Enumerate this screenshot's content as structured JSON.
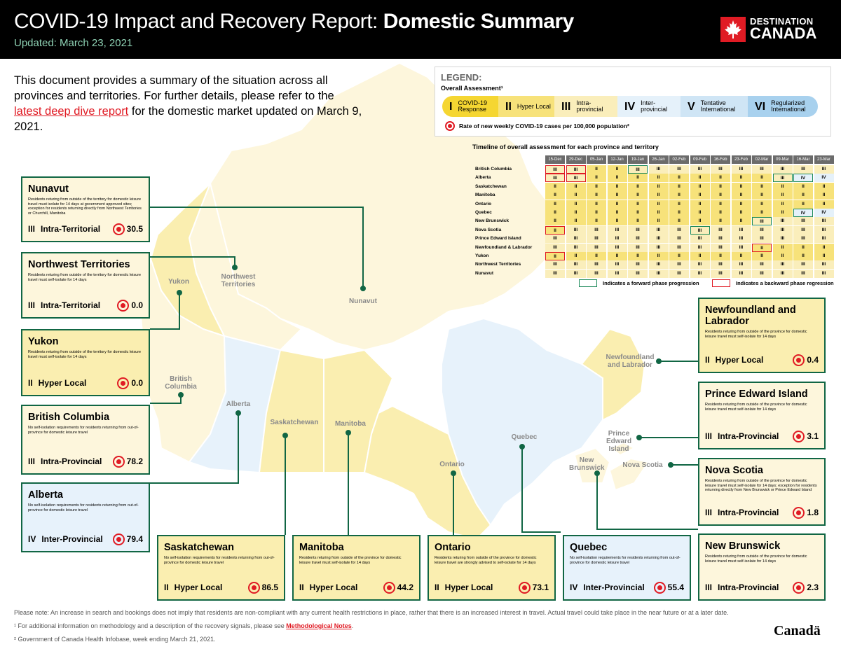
{
  "header": {
    "title_light": "COVID-19 Impact and Recovery Report:",
    "title_bold": "Domestic Summary",
    "updated": "Updated: March 23, 2021",
    "logo_line1": "DESTINATION",
    "logo_line2": "CANADA"
  },
  "intro": {
    "before": "This document provides a summary of the situation across all provinces and territories. For further details, please refer to the ",
    "link": "latest deep dive report",
    "after": " for the domestic market updated on March 9, 2021."
  },
  "map_labels": {
    "yukon": "Yukon",
    "nwt": "Northwest Territories",
    "nunavut": "Nunavut",
    "bc": "British Columbia",
    "alberta": "Alberta",
    "saskatchewan": "Saskatchewan",
    "manitoba": "Manitoba",
    "ontario": "Ontario",
    "quebec": "Quebec",
    "nl": "Newfoundland and Labrador",
    "pei": "Prince Edward Island",
    "nb": "New Brunswick",
    "ns": "Nova Scotia"
  },
  "legend": {
    "title": "LEGEND:",
    "subtitle": "Overall Assessment¹",
    "phases": [
      {
        "numeral": "I",
        "label": "COVID-19 Response",
        "color": "#f5d632"
      },
      {
        "numeral": "II",
        "label": "Hyper Local",
        "color": "#f7e27a"
      },
      {
        "numeral": "III",
        "label": "Intra-provincial",
        "color": "#faeebb"
      },
      {
        "numeral": "IV",
        "label": "Inter-provincial",
        "color": "#e5f1fa"
      },
      {
        "numeral": "V",
        "label": "Tentative International",
        "color": "#cfe5f5"
      },
      {
        "numeral": "VI",
        "label": "Regularized International",
        "color": "#a8d1ee"
      }
    ],
    "rate_note": "Rate of new weekly COVID-19 cases per 100,000 population²"
  },
  "timeline": {
    "title": "Timeline of overall assessment for each province and territory",
    "dates": [
      "15-Dec",
      "29-Dec",
      "05-Jan",
      "12-Jan",
      "19-Jan",
      "26-Jan",
      "02-Feb",
      "09-Feb",
      "16-Feb",
      "23-Feb",
      "02-Mar",
      "09-Mar",
      "16-Mar",
      "23-Mar"
    ],
    "rows": [
      {
        "name": "British Columbia",
        "cells": [
          "III",
          "III",
          "II",
          "II",
          "III",
          "III",
          "III",
          "III",
          "III",
          "III",
          "III",
          "III",
          "III",
          "III"
        ],
        "marks": {
          "0": "back",
          "1": "back",
          "4": "fwd"
        }
      },
      {
        "name": "Alberta",
        "cells": [
          "III",
          "III",
          "II",
          "II",
          "II",
          "II",
          "II",
          "II",
          "II",
          "II",
          "II",
          "III",
          "IV",
          "IV"
        ],
        "marks": {
          "0": "back",
          "1": "back",
          "11": "fwd",
          "12": "fwd"
        }
      },
      {
        "name": "Saskatchewan",
        "cells": [
          "II",
          "II",
          "II",
          "II",
          "II",
          "II",
          "II",
          "II",
          "II",
          "II",
          "II",
          "II",
          "II",
          "II"
        ],
        "marks": {}
      },
      {
        "name": "Manitoba",
        "cells": [
          "II",
          "II",
          "II",
          "II",
          "II",
          "II",
          "II",
          "II",
          "II",
          "II",
          "II",
          "II",
          "II",
          "II"
        ],
        "marks": {}
      },
      {
        "name": "Ontario",
        "cells": [
          "II",
          "II",
          "II",
          "II",
          "II",
          "II",
          "II",
          "II",
          "II",
          "II",
          "II",
          "II",
          "II",
          "II"
        ],
        "marks": {}
      },
      {
        "name": "Quebec",
        "cells": [
          "II",
          "II",
          "II",
          "II",
          "II",
          "II",
          "II",
          "II",
          "II",
          "II",
          "II",
          "II",
          "IV",
          "IV"
        ],
        "marks": {
          "12": "fwd"
        }
      },
      {
        "name": "New Brunswick",
        "cells": [
          "II",
          "II",
          "II",
          "II",
          "II",
          "II",
          "II",
          "II",
          "II",
          "II",
          "III",
          "III",
          "III",
          "III"
        ],
        "marks": {
          "10": "fwd"
        }
      },
      {
        "name": "Nova Scotia",
        "cells": [
          "II",
          "III",
          "III",
          "III",
          "III",
          "III",
          "III",
          "III",
          "III",
          "III",
          "III",
          "III",
          "III",
          "III"
        ],
        "marks": {
          "0": "back",
          "7": "fwd"
        }
      },
      {
        "name": "Prince Edward Island",
        "cells": [
          "III",
          "III",
          "III",
          "III",
          "III",
          "III",
          "III",
          "III",
          "III",
          "III",
          "III",
          "III",
          "III",
          "III"
        ],
        "marks": {}
      },
      {
        "name": "Newfoundland & Labrador",
        "cells": [
          "III",
          "III",
          "III",
          "III",
          "III",
          "III",
          "III",
          "III",
          "III",
          "III",
          "II",
          "II",
          "II",
          "II"
        ],
        "marks": {
          "10": "back"
        }
      },
      {
        "name": "Yukon",
        "cells": [
          "II",
          "II",
          "II",
          "II",
          "II",
          "II",
          "II",
          "II",
          "II",
          "II",
          "II",
          "II",
          "II",
          "II"
        ],
        "marks": {
          "0": "back"
        }
      },
      {
        "name": "Northwest Territories",
        "cells": [
          "III",
          "III",
          "III",
          "III",
          "III",
          "III",
          "III",
          "III",
          "III",
          "III",
          "III",
          "III",
          "III",
          "III"
        ],
        "marks": {}
      },
      {
        "name": "Nunavut",
        "cells": [
          "III",
          "III",
          "III",
          "III",
          "III",
          "III",
          "III",
          "III",
          "III",
          "III",
          "III",
          "III",
          "III",
          "III"
        ],
        "marks": {}
      }
    ],
    "key_forward": "Indicates a forward phase progression",
    "key_backward": "Indicates a backward phase regression",
    "forward_color": "#1d8a5a",
    "backward_color": "#e01b24"
  },
  "provinces": {
    "nunavut": {
      "name": "Nunavut",
      "desc": "Residents returing from outside of the territory for domestic leisure travel must isolate for 14 days at government approved sites; exception for residents returning directly from Northwest Territories or Churchill, Manitoba",
      "numeral": "III",
      "phase": "Intra-Territorial",
      "rate": "30.5"
    },
    "nwt": {
      "name": "Northwest Territories",
      "desc": "Residents returing from outside of the territory for domestic leisure travel must self-isolate for 14 days",
      "numeral": "III",
      "phase": "Intra-Territorial",
      "rate": "0.0"
    },
    "yukon": {
      "name": "Yukon",
      "desc": "Residents returing from outside of the territory for domestic leisure travel must self-isolate for 14 days",
      "numeral": "II",
      "phase": "Hyper Local",
      "rate": "0.0"
    },
    "bc": {
      "name": "British Columbia",
      "desc": "No self-isolation requirements for residents returning from out-of-province for domestic leisure travel",
      "numeral": "III",
      "phase": "Intra-Provincial",
      "rate": "78.2"
    },
    "alberta": {
      "name": "Alberta",
      "desc": "No self-isolation requirements for residents returning from out-of-province for domestic leisure travel",
      "numeral": "IV",
      "phase": "Inter-Provincial",
      "rate": "79.4"
    },
    "saskatchewan": {
      "name": "Saskatchewan",
      "desc": "No self-isolation requirements for residents returning from out-of-province for domestic leisure travel",
      "numeral": "II",
      "phase": "Hyper Local",
      "rate": "86.5"
    },
    "manitoba": {
      "name": "Manitoba",
      "desc": "Residents returing from outside of the province for domestic leisure travel must self-isolate for 14 days",
      "numeral": "II",
      "phase": "Hyper Local",
      "rate": "44.2"
    },
    "ontario": {
      "name": "Ontario",
      "desc": "Residents returing from outside of the province for domestic leisure travel are strongly advised to self-isolate for 14 days",
      "numeral": "II",
      "phase": "Hyper Local",
      "rate": "73.1"
    },
    "quebec": {
      "name": "Quebec",
      "desc": "No self-isolation requirements for residents returning from out-of-province for domestic leisure travel",
      "numeral": "IV",
      "phase": "Inter-Provincial",
      "rate": "55.4"
    },
    "nl": {
      "name": "Newfoundland and Labrador",
      "desc": "Residents returing from outside of the province for domestic leisure travel must self-isolate for 14 days",
      "numeral": "II",
      "phase": "Hyper Local",
      "rate": "0.4"
    },
    "pei": {
      "name": "Prince Edward Island",
      "desc": "Residents returing from outside of the province for domestic leisure travel must self-isolate for 14 days",
      "numeral": "III",
      "phase": "Intra-Provincial",
      "rate": "3.1"
    },
    "ns": {
      "name": "Nova Scotia",
      "desc": "Residents returing from outside of the province for domestic leisure travel must self-isolate for 14 days; exception for residents returning directly from New Brunswick or Prince Edward Island",
      "numeral": "III",
      "phase": "Intra-Provincial",
      "rate": "1.8"
    },
    "nb": {
      "name": "New Brunswick",
      "desc": "Residents returing from outside of the province for domestic leisure travel must self-isolate for 14 days",
      "numeral": "III",
      "phase": "Intra-Provincial",
      "rate": "2.3"
    }
  },
  "notes": {
    "line1": "Please note: An increase in search and bookings does not imply that residents are non-compliant with any current health restrictions in place, rather that there is an increased interest in travel. Actual travel could take place in the near future or at a later date.",
    "line2_before": "¹ For additional information on methodology and a description of the recovery signals, please see ",
    "line2_link": "Methodological Notes",
    "line2_after": ".",
    "line3": "² Government of Canada Health Infobase, week ending March 21, 2021."
  },
  "wordmark": "Canadä",
  "colors": {
    "box_border": "#116644",
    "hyper_local": "#faeeb0",
    "intra": "#fdf6dc",
    "inter": "#e7f2fb",
    "rate_red": "#e01b24"
  }
}
